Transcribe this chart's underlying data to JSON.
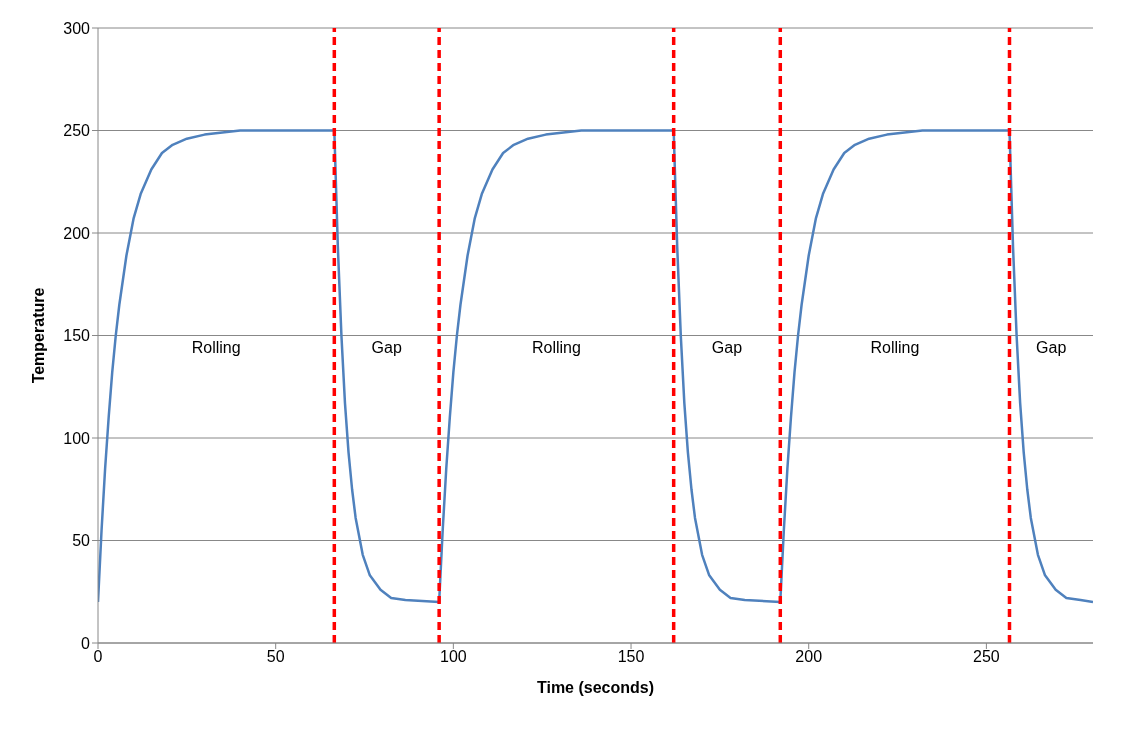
{
  "chart_data": {
    "type": "line",
    "xlabel": "Time (seconds)",
    "ylabel": "Temperature",
    "xlim": [
      0,
      280
    ],
    "xticks": [
      0,
      50,
      100,
      150,
      200,
      250
    ],
    "ylim": [
      0,
      300
    ],
    "yticks": [
      0,
      50,
      100,
      150,
      200,
      250,
      300
    ],
    "grid": "y",
    "marker": "none",
    "line_style": "solid",
    "series": [
      {
        "color": "#4f81bd",
        "x": [
          0,
          1,
          2,
          3,
          4,
          5,
          6,
          8,
          10,
          12,
          15,
          18,
          21,
          25,
          30,
          40,
          50,
          66.5,
          67.5,
          68.5,
          69.5,
          70.5,
          71.5,
          72.5,
          74.5,
          76.5,
          79.5,
          82.5,
          86.5,
          96,
          97,
          98,
          99,
          100,
          101,
          102,
          104,
          106,
          108,
          111,
          114,
          117,
          121,
          126,
          136,
          146,
          162,
          163,
          164,
          165,
          166,
          167,
          168,
          170,
          172,
          175,
          178,
          182,
          192,
          193,
          194,
          195,
          196,
          197,
          198,
          200,
          202,
          204,
          207,
          210,
          213,
          217,
          222,
          232,
          242,
          256.5,
          257.5,
          258.5,
          259.5,
          260.5,
          261.5,
          262.5,
          264.5,
          266.5,
          269.5,
          272.5,
          276.5,
          280
        ],
        "values": [
          20,
          55,
          85,
          110,
          132,
          150,
          165,
          189,
          207,
          219,
          231,
          239,
          243,
          246,
          248,
          250,
          250,
          250,
          193,
          150,
          117,
          93,
          75,
          61,
          43,
          33,
          26,
          22,
          21,
          20,
          55,
          85,
          110,
          132,
          150,
          165,
          189,
          207,
          219,
          231,
          239,
          243,
          246,
          248,
          250,
          250,
          250,
          193,
          150,
          117,
          93,
          75,
          61,
          43,
          33,
          26,
          22,
          21,
          20,
          55,
          85,
          110,
          132,
          150,
          165,
          189,
          207,
          219,
          231,
          239,
          243,
          246,
          248,
          250,
          250,
          250,
          193,
          150,
          117,
          93,
          75,
          61,
          43,
          33,
          26,
          22,
          21,
          20
        ]
      }
    ],
    "ref_lines": [
      {
        "axis": "x",
        "value": 66.5,
        "color": "#ff0000",
        "line_style": "dashed"
      },
      {
        "axis": "x",
        "value": 96,
        "color": "#ff0000",
        "line_style": "dashed"
      },
      {
        "axis": "x",
        "value": 162,
        "color": "#ff0000",
        "line_style": "dashed"
      },
      {
        "axis": "x",
        "value": 192,
        "color": "#ff0000",
        "line_style": "dashed"
      },
      {
        "axis": "x",
        "value": 256.5,
        "color": "#ff0000",
        "line_style": "dashed"
      }
    ],
    "annotations": [
      "Rolling",
      "Gap",
      "Rolling",
      "Gap",
      "Rolling",
      "Gap"
    ]
  }
}
